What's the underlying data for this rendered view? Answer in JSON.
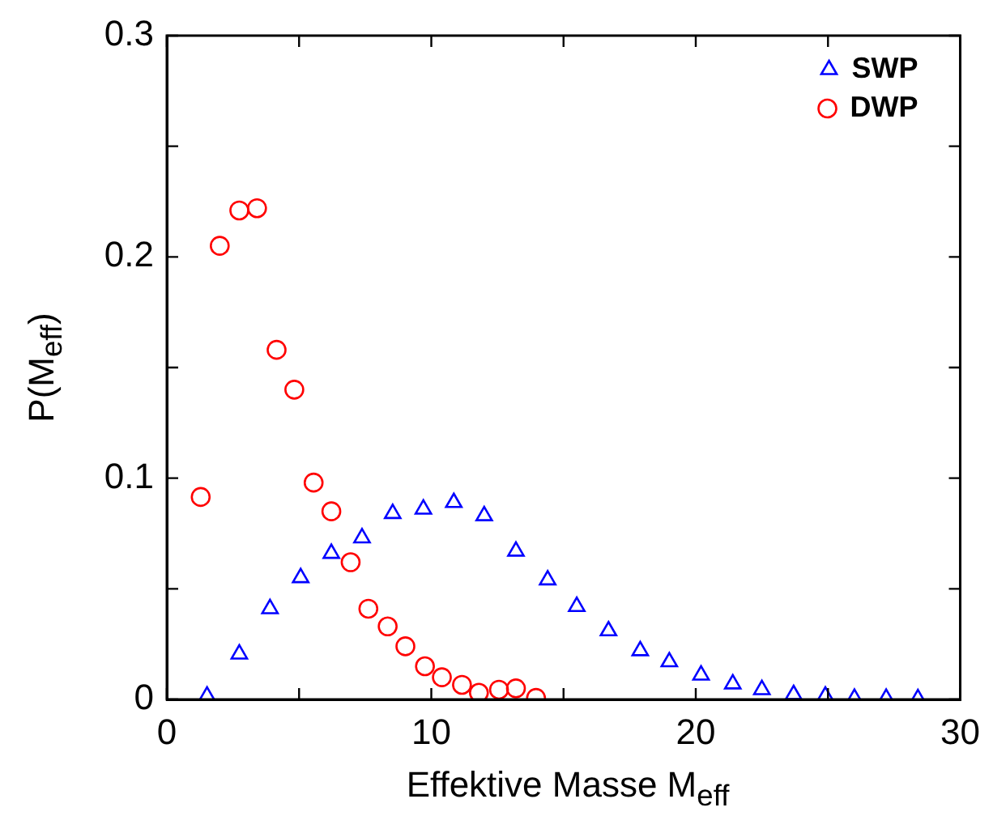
{
  "chart_data": {
    "type": "scatter",
    "xlabel": "Effektive Masse M$_{eff}$",
    "ylabel": "P(M$_{eff}$)",
    "xlim": [
      0,
      30
    ],
    "xticks": [
      0,
      {
        "value": 5,
        "label": null
      },
      10,
      {
        "value": 15,
        "label": null
      },
      20,
      {
        "value": 25,
        "label": null
      },
      30
    ],
    "ylim": [
      0,
      0.3
    ],
    "yticks": [
      0,
      {
        "value": 0.05,
        "label": null
      },
      0.1,
      {
        "value": 0.15,
        "label": null
      },
      0.2,
      {
        "value": 0.25,
        "label": null
      },
      0.3
    ],
    "legend": "top right",
    "grid": false,
    "series": [
      {
        "name": "SWP",
        "color": "#0000ff",
        "marker": "triangle",
        "x": [
          1.52,
          2.74,
          3.9,
          5.06,
          6.22,
          7.38,
          8.54,
          9.7,
          10.85,
          12.0,
          13.2,
          14.4,
          15.5,
          16.7,
          17.9,
          19.0,
          20.2,
          21.4,
          22.5,
          23.7,
          24.9,
          26.0,
          27.2,
          28.4
        ],
        "values": [
          0.0015,
          0.0205,
          0.041,
          0.055,
          0.066,
          0.073,
          0.084,
          0.086,
          0.089,
          0.083,
          0.067,
          0.054,
          0.042,
          0.031,
          0.022,
          0.017,
          0.011,
          0.007,
          0.0044,
          0.0022,
          0.0015,
          0.0005,
          0.0005,
          0.0003
        ]
      },
      {
        "name": "DWP",
        "color": "#ff0000",
        "marker": "circle",
        "x": [
          1.28,
          2.0,
          2.74,
          3.41,
          4.15,
          4.82,
          5.55,
          6.22,
          6.95,
          7.62,
          8.35,
          9.02,
          9.76,
          10.4,
          11.16,
          11.8,
          12.56,
          13.2,
          13.96
        ],
        "values": [
          0.0915,
          0.205,
          0.221,
          0.222,
          0.158,
          0.14,
          0.098,
          0.085,
          0.062,
          0.041,
          0.033,
          0.024,
          0.015,
          0.01,
          0.0066,
          0.003,
          0.0044,
          0.005,
          0.0007
        ]
      }
    ]
  }
}
